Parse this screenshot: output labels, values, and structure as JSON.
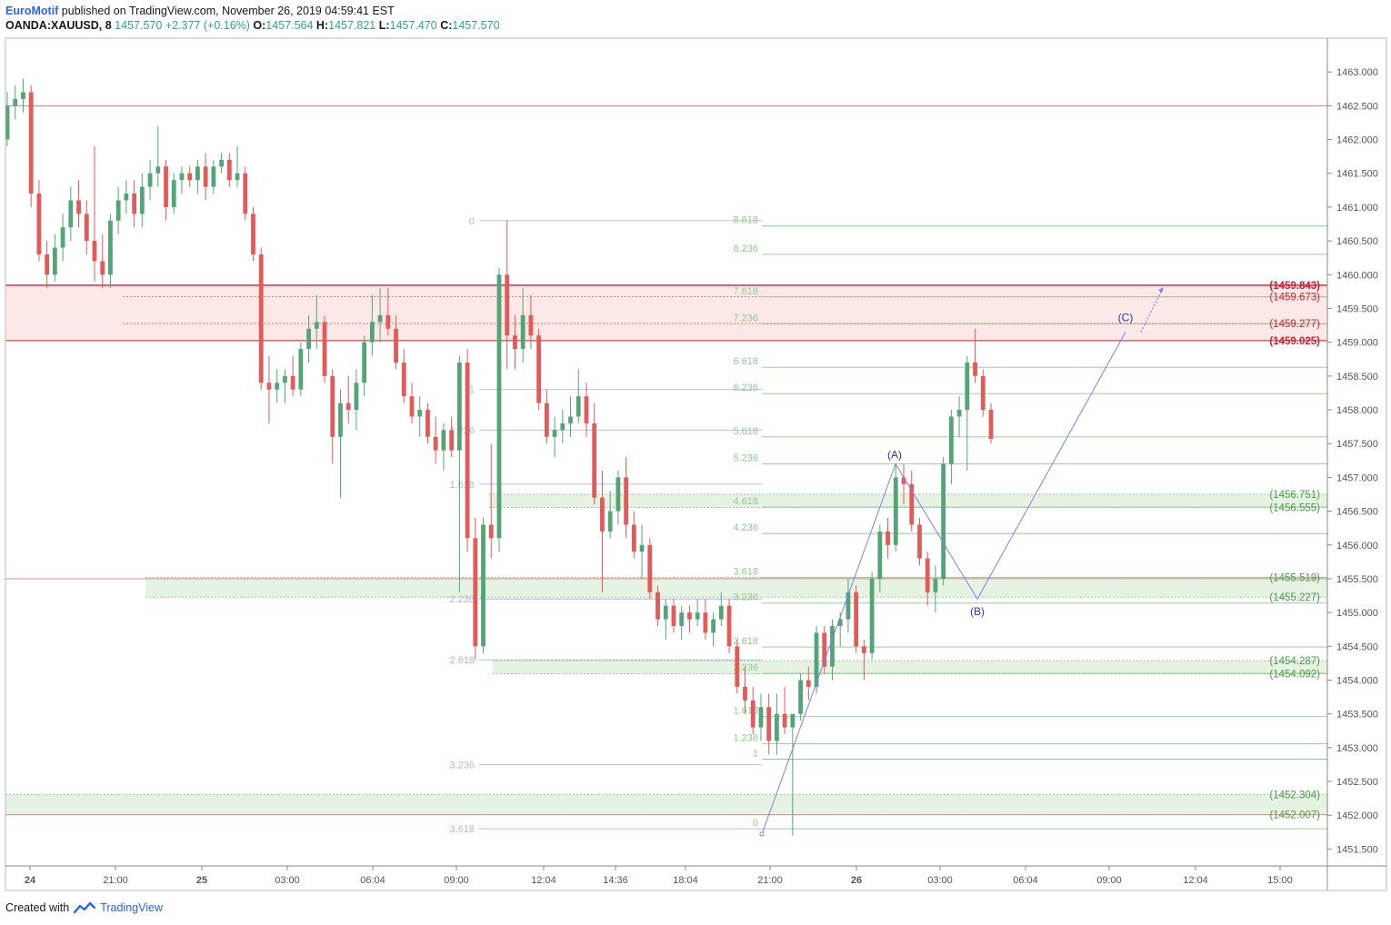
{
  "header": {
    "author": "EuroMotif",
    "published_text": " published on TradingView.com, November 26, 2019 04:59:41 EST",
    "symbol": "OANDA:XAUUSD, 8",
    "last": "1457.570",
    "change": "+2.377 (+0.16%)",
    "open_label": "O:",
    "open": "1457.564",
    "high_label": "H:",
    "high": "1457.821",
    "low_label": "L:",
    "low": "1457.470",
    "close_label": "C:",
    "close": "1457.570"
  },
  "footer": {
    "created_with": "Created with",
    "brand": "TradingView"
  },
  "colors": {
    "up": "#53a577",
    "down": "#e35a5a",
    "axis": "#555555",
    "fib_left": "#b7b2d9",
    "fib_right": "#8ecb8e",
    "red_level": "#d21f2f",
    "green_level": "#4a9a4a",
    "wave": "#8080e8",
    "wave_label": "#3333aa"
  },
  "chart_data": {
    "type": "candlestick",
    "symbol": "OANDA:XAUUSD",
    "interval": "8",
    "ylim": [
      1451.25,
      1463.5
    ],
    "y_ticks": [
      "1463.000",
      "1462.500",
      "1462.000",
      "1461.500",
      "1461.000",
      "1460.500",
      "1460.000",
      "1459.500",
      "1459.000",
      "1458.500",
      "1458.000",
      "1457.500",
      "1457.000",
      "1456.500",
      "1456.000",
      "1455.500",
      "1455.000",
      "1454.500",
      "1454.000",
      "1453.500",
      "1453.000",
      "1452.500",
      "1452.000",
      "1451.500"
    ],
    "x_ticks": [
      "24",
      "21:00",
      "25",
      "03:00",
      "06:04",
      "09:00",
      "12:04",
      "14:36",
      "18:04",
      "21:00",
      "26",
      "03:00",
      "06:04",
      "09:00",
      "12:04",
      "15:00"
    ],
    "candles_approx": [
      [
        1462.0,
        1462.7,
        1461.9,
        1462.5
      ],
      [
        1462.5,
        1462.8,
        1462.3,
        1462.6
      ],
      [
        1462.6,
        1462.9,
        1462.4,
        1462.7
      ],
      [
        1462.7,
        1462.8,
        1461.0,
        1461.2
      ],
      [
        1461.2,
        1461.4,
        1460.2,
        1460.3
      ],
      [
        1460.3,
        1460.5,
        1459.8,
        1460.0
      ],
      [
        1460.0,
        1460.6,
        1459.9,
        1460.4
      ],
      [
        1460.4,
        1460.9,
        1460.2,
        1460.7
      ],
      [
        1460.7,
        1461.3,
        1460.5,
        1461.1
      ],
      [
        1461.1,
        1461.4,
        1460.7,
        1460.9
      ],
      [
        1460.9,
        1461.1,
        1460.3,
        1460.5
      ],
      [
        1460.5,
        1461.9,
        1459.9,
        1460.2
      ],
      [
        1460.2,
        1460.6,
        1459.8,
        1460.0
      ],
      [
        1460.0,
        1460.9,
        1459.8,
        1460.8
      ],
      [
        1460.8,
        1461.3,
        1460.6,
        1461.1
      ],
      [
        1461.1,
        1461.4,
        1460.9,
        1461.2
      ],
      [
        1461.2,
        1461.4,
        1460.7,
        1460.9
      ],
      [
        1460.9,
        1461.5,
        1460.7,
        1461.3
      ],
      [
        1461.3,
        1461.7,
        1461.1,
        1461.5
      ],
      [
        1461.5,
        1462.2,
        1461.3,
        1461.6
      ],
      [
        1461.6,
        1461.7,
        1460.8,
        1461.0
      ],
      [
        1461.0,
        1461.5,
        1460.9,
        1461.4
      ],
      [
        1461.4,
        1461.6,
        1461.2,
        1461.5
      ],
      [
        1461.5,
        1461.6,
        1461.3,
        1461.4
      ],
      [
        1461.4,
        1461.7,
        1461.2,
        1461.6
      ],
      [
        1461.6,
        1461.8,
        1461.1,
        1461.3
      ],
      [
        1461.3,
        1461.7,
        1461.2,
        1461.6
      ],
      [
        1461.6,
        1461.8,
        1461.5,
        1461.7
      ],
      [
        1461.7,
        1461.8,
        1461.3,
        1461.4
      ],
      [
        1461.4,
        1461.9,
        1461.3,
        1461.5
      ],
      [
        1461.5,
        1461.6,
        1460.8,
        1460.9
      ],
      [
        1460.9,
        1461.0,
        1460.2,
        1460.3
      ],
      [
        1460.3,
        1460.4,
        1458.3,
        1458.4
      ],
      [
        1458.4,
        1458.8,
        1457.8,
        1458.3
      ],
      [
        1458.3,
        1458.6,
        1458.1,
        1458.4
      ],
      [
        1458.4,
        1458.6,
        1458.1,
        1458.5
      ],
      [
        1458.5,
        1458.8,
        1458.2,
        1458.3
      ],
      [
        1458.3,
        1459.0,
        1458.2,
        1458.9
      ],
      [
        1458.9,
        1459.4,
        1458.7,
        1459.2
      ],
      [
        1459.2,
        1459.7,
        1458.9,
        1459.3
      ],
      [
        1459.3,
        1459.4,
        1458.4,
        1458.5
      ],
      [
        1458.5,
        1458.6,
        1457.2,
        1457.6
      ],
      [
        1457.6,
        1458.3,
        1456.7,
        1458.1
      ],
      [
        1458.1,
        1458.5,
        1457.8,
        1458.0
      ],
      [
        1458.0,
        1458.6,
        1457.7,
        1458.4
      ],
      [
        1458.4,
        1459.1,
        1458.2,
        1459.0
      ],
      [
        1459.0,
        1459.7,
        1458.8,
        1459.3
      ],
      [
        1459.3,
        1459.8,
        1459.0,
        1459.4
      ],
      [
        1459.4,
        1459.8,
        1459.1,
        1459.2
      ],
      [
        1459.2,
        1459.4,
        1458.6,
        1458.7
      ],
      [
        1458.7,
        1458.9,
        1458.1,
        1458.2
      ],
      [
        1458.2,
        1458.4,
        1457.8,
        1457.9
      ],
      [
        1457.9,
        1458.2,
        1457.6,
        1458.0
      ],
      [
        1458.0,
        1458.1,
        1457.5,
        1457.6
      ],
      [
        1457.6,
        1457.9,
        1457.2,
        1457.4
      ],
      [
        1457.4,
        1457.8,
        1457.1,
        1457.7
      ],
      [
        1457.7,
        1457.9,
        1457.3,
        1457.4
      ],
      [
        1457.4,
        1458.8,
        1455.3,
        1458.7
      ],
      [
        1458.7,
        1458.9,
        1455.9,
        1456.1
      ],
      [
        1456.1,
        1456.4,
        1454.3,
        1454.5
      ],
      [
        1454.5,
        1456.4,
        1454.4,
        1456.3
      ],
      [
        1456.3,
        1457.5,
        1455.8,
        1456.1
      ],
      [
        1456.1,
        1460.1,
        1455.9,
        1460.0
      ],
      [
        1460.0,
        1460.8,
        1458.6,
        1459.1
      ],
      [
        1459.1,
        1459.4,
        1458.6,
        1458.9
      ],
      [
        1458.9,
        1459.8,
        1458.7,
        1459.4
      ],
      [
        1459.4,
        1459.7,
        1458.9,
        1459.1
      ],
      [
        1459.1,
        1459.2,
        1458.0,
        1458.1
      ],
      [
        1458.1,
        1458.3,
        1457.5,
        1457.6
      ],
      [
        1457.6,
        1457.9,
        1457.3,
        1457.7
      ],
      [
        1457.7,
        1458.0,
        1457.5,
        1457.8
      ],
      [
        1457.8,
        1458.2,
        1457.6,
        1457.9
      ],
      [
        1457.9,
        1458.6,
        1457.8,
        1458.2
      ],
      [
        1458.2,
        1458.4,
        1457.6,
        1457.8
      ],
      [
        1457.8,
        1458.1,
        1456.6,
        1456.7
      ],
      [
        1456.7,
        1457.1,
        1455.3,
        1456.2
      ],
      [
        1456.2,
        1456.8,
        1456.1,
        1456.5
      ],
      [
        1456.5,
        1457.1,
        1456.3,
        1457.0
      ],
      [
        1457.0,
        1457.3,
        1456.1,
        1456.3
      ],
      [
        1456.3,
        1456.5,
        1455.8,
        1455.9
      ],
      [
        1455.9,
        1456.3,
        1455.5,
        1456.0
      ],
      [
        1456.0,
        1456.1,
        1455.2,
        1455.3
      ],
      [
        1455.3,
        1455.4,
        1454.8,
        1454.9
      ],
      [
        1454.9,
        1455.2,
        1454.6,
        1455.1
      ],
      [
        1455.1,
        1455.2,
        1454.7,
        1454.8
      ],
      [
        1454.8,
        1455.1,
        1454.6,
        1455.0
      ],
      [
        1455.0,
        1455.1,
        1454.7,
        1454.9
      ],
      [
        1454.9,
        1455.2,
        1454.8,
        1455.0
      ],
      [
        1455.0,
        1455.2,
        1454.6,
        1454.7
      ],
      [
        1454.7,
        1455.0,
        1454.5,
        1454.9
      ],
      [
        1454.9,
        1455.3,
        1454.8,
        1455.1
      ],
      [
        1455.1,
        1455.2,
        1454.4,
        1454.5
      ],
      [
        1454.5,
        1454.6,
        1453.8,
        1453.9
      ],
      [
        1453.9,
        1454.2,
        1453.5,
        1453.7
      ],
      [
        1453.7,
        1453.9,
        1453.2,
        1453.3
      ],
      [
        1453.3,
        1453.8,
        1453.1,
        1453.6
      ],
      [
        1453.6,
        1453.8,
        1452.9,
        1453.1
      ],
      [
        1453.1,
        1453.8,
        1452.9,
        1453.5
      ],
      [
        1453.5,
        1453.9,
        1453.2,
        1453.3
      ],
      [
        1453.3,
        1453.4,
        1451.7,
        1453.5
      ],
      [
        1453.5,
        1454.1,
        1453.4,
        1454.0
      ],
      [
        1454.0,
        1454.2,
        1453.7,
        1453.9
      ],
      [
        1453.9,
        1454.8,
        1453.8,
        1454.7
      ],
      [
        1454.7,
        1454.8,
        1454.1,
        1454.2
      ],
      [
        1454.2,
        1454.9,
        1454.0,
        1454.8
      ],
      [
        1454.8,
        1455.0,
        1454.5,
        1454.9
      ],
      [
        1454.9,
        1455.5,
        1454.7,
        1455.3
      ],
      [
        1455.3,
        1455.4,
        1454.4,
        1454.5
      ],
      [
        1454.5,
        1454.6,
        1454.0,
        1454.4
      ],
      [
        1454.4,
        1455.6,
        1454.3,
        1455.5
      ],
      [
        1455.5,
        1456.3,
        1455.3,
        1456.2
      ],
      [
        1456.2,
        1456.4,
        1455.8,
        1456.0
      ],
      [
        1456.0,
        1457.2,
        1455.9,
        1457.0
      ],
      [
        1457.0,
        1457.2,
        1456.6,
        1456.9
      ],
      [
        1456.9,
        1457.1,
        1456.2,
        1456.3
      ],
      [
        1456.3,
        1456.4,
        1455.7,
        1455.8
      ],
      [
        1455.8,
        1455.9,
        1455.1,
        1455.3
      ],
      [
        1455.3,
        1455.7,
        1455.0,
        1455.5
      ],
      [
        1455.5,
        1457.3,
        1455.4,
        1457.2
      ],
      [
        1457.2,
        1458.0,
        1456.9,
        1457.9
      ],
      [
        1457.9,
        1458.2,
        1457.6,
        1458.0
      ],
      [
        1458.0,
        1458.8,
        1457.1,
        1458.7
      ],
      [
        1458.7,
        1459.2,
        1458.4,
        1458.5
      ],
      [
        1458.5,
        1458.6,
        1457.9,
        1458.0
      ],
      [
        1458.0,
        1458.1,
        1457.5,
        1457.57
      ]
    ],
    "fib_left": [
      {
        "label": "0",
        "value": 1460.8
      },
      {
        "label": "1",
        "value": 1458.3
      },
      {
        "label": "1.236",
        "value": 1457.7
      },
      {
        "label": "1.618",
        "value": 1456.9
      },
      {
        "label": "2.236",
        "value": 1455.2
      },
      {
        "label": "2.618",
        "value": 1454.3
      },
      {
        "label": "3.236",
        "value": 1452.75
      },
      {
        "label": "3.618",
        "value": 1451.8
      }
    ],
    "fib_right": [
      {
        "label": "8.618",
        "value": 1460.72
      },
      {
        "label": "8.236",
        "value": 1460.3
      },
      {
        "label": "7.618",
        "value": 1459.67
      },
      {
        "label": "7.236",
        "value": 1459.27
      },
      {
        "label": "6.618",
        "value": 1458.63
      },
      {
        "label": "6.236",
        "value": 1458.24
      },
      {
        "label": "5.618",
        "value": 1457.6
      },
      {
        "label": "5.236",
        "value": 1457.2
      },
      {
        "label": "4.618",
        "value": 1456.56
      },
      {
        "label": "4.236",
        "value": 1456.17
      },
      {
        "label": "3.618",
        "value": 1455.52
      },
      {
        "label": "3.236",
        "value": 1455.14
      },
      {
        "label": "2.618",
        "value": 1454.49
      },
      {
        "label": "2.236",
        "value": 1454.1
      },
      {
        "label": "1.618",
        "value": 1453.46
      },
      {
        "label": "1.236",
        "value": 1453.06
      },
      {
        "label": "1",
        "value": 1452.83
      },
      {
        "label": "0",
        "value": 1451.8
      }
    ],
    "levels": [
      {
        "label": "(1459.843)",
        "value": 1459.843,
        "kind": "red-bold"
      },
      {
        "label": "(1459.673)",
        "value": 1459.673,
        "kind": "red"
      },
      {
        "label": "(1459.277)",
        "value": 1459.277,
        "kind": "red"
      },
      {
        "label": "(1459.025)",
        "value": 1459.025,
        "kind": "red-bold"
      },
      {
        "label": "(1456.751)",
        "value": 1456.751,
        "kind": "green"
      },
      {
        "label": "(1456.555)",
        "value": 1456.555,
        "kind": "green"
      },
      {
        "label": "(1455.519)",
        "value": 1455.519,
        "kind": "green"
      },
      {
        "label": "(1455.227)",
        "value": 1455.227,
        "kind": "green"
      },
      {
        "label": "(1454.287)",
        "value": 1454.287,
        "kind": "green"
      },
      {
        "label": "(1454.092)",
        "value": 1454.092,
        "kind": "green"
      },
      {
        "label": "(1452.304)",
        "value": 1452.304,
        "kind": "green"
      },
      {
        "label": "(1452.007)",
        "value": 1452.007,
        "kind": "green"
      }
    ],
    "horizontal_lines": [
      1462.5,
      1459.025,
      1455.5,
      1452.007
    ],
    "waves": [
      {
        "label": "(A)",
        "value": 1457.2
      },
      {
        "label": "(B)",
        "value": 1455.2
      },
      {
        "label": "(C)",
        "value": 1459.15
      }
    ],
    "wave_path_values": [
      1451.72,
      1457.2,
      1455.2,
      1459.15
    ],
    "projection_values": [
      1459.15,
      1459.8
    ]
  }
}
